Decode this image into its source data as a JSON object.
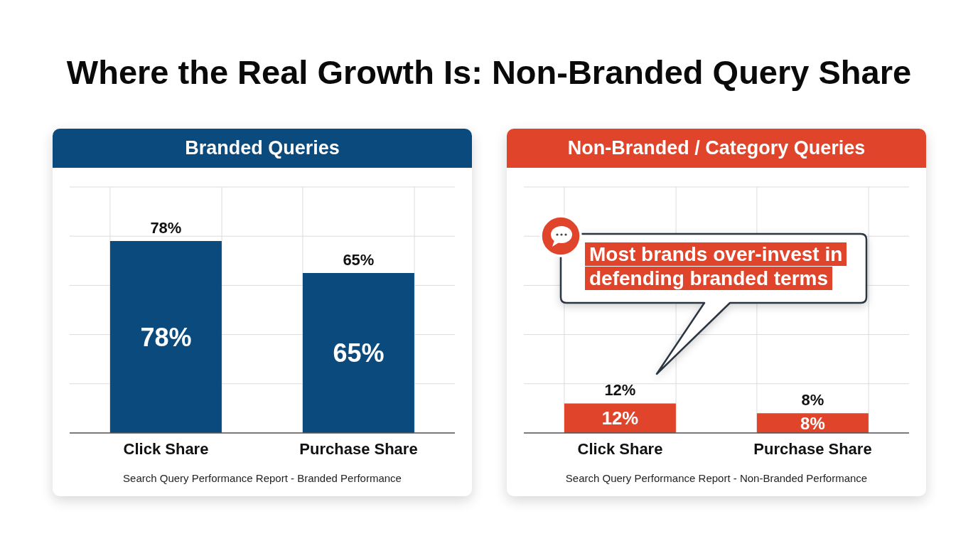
{
  "chart_data": [
    {
      "type": "bar",
      "title": "Where the Real Growth Is: Non-Branded Query Share",
      "subtitle": "Branded Queries",
      "categories": [
        "Click Share",
        "Purchase Share"
      ],
      "values": [
        78,
        65
      ],
      "value_labels": [
        "78%",
        "65%"
      ],
      "color": "#0b4a7d",
      "ylim": [
        0,
        100
      ],
      "yticks": [
        {
          "value": 0,
          "label": null
        },
        {
          "value": 20,
          "label": null
        },
        {
          "value": 40,
          "label": null
        },
        {
          "value": 60,
          "label": null
        },
        {
          "value": 80,
          "label": null
        },
        {
          "value": 100,
          "label": null
        }
      ],
      "grid": true,
      "tick_labels": "x",
      "annotations": [
        "Search Query Performance Report - Branded Performance"
      ]
    },
    {
      "type": "bar",
      "subtitle": "Non-Branded / Category Queries",
      "categories": [
        "Click Share",
        "Purchase Share"
      ],
      "values": [
        12,
        8
      ],
      "value_labels": [
        "12%",
        "8%"
      ],
      "color": "#e0452c",
      "ylim": [
        0,
        100
      ],
      "yticks": [
        {
          "value": 0,
          "label": null
        },
        {
          "value": 20,
          "label": null
        },
        {
          "value": 40,
          "label": null
        },
        {
          "value": 60,
          "label": null
        },
        {
          "value": 80,
          "label": null
        },
        {
          "value": 100,
          "label": null
        }
      ],
      "grid": true,
      "tick_labels": "x",
      "annotations": [
        "Most brands over-invest in defending branded terms",
        "Search Query Performance Report - Non-Branded Performance"
      ]
    }
  ]
}
